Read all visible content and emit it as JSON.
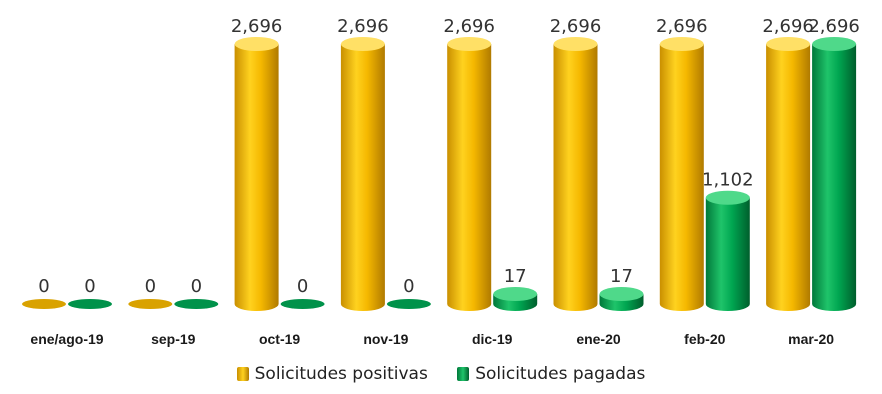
{
  "chart_data": {
    "type": "bar",
    "categories": [
      "ene/ago-19",
      "sep-19",
      "oct-19",
      "nov-19",
      "dic-19",
      "ene-20",
      "feb-20",
      "mar-20"
    ],
    "series": [
      {
        "name": "Solicitudes positivas",
        "values": [
          0,
          0,
          2696,
          2696,
          2696,
          2696,
          2696,
          2696
        ],
        "labels": [
          "0",
          "0",
          "2,696",
          "2,696",
          "2,696",
          "2,696",
          "2,696",
          "2,696"
        ],
        "color": "#F5B800"
      },
      {
        "name": "Solicitudes pagadas",
        "values": [
          0,
          0,
          0,
          0,
          17,
          17,
          1102,
          2696
        ],
        "labels": [
          "0",
          "0",
          "0",
          "0",
          "17",
          "17",
          "1,102",
          "2,696"
        ],
        "color": "#00A651"
      }
    ],
    "ylim": [
      0,
      2696
    ],
    "grid": false,
    "legend_position": "bottom",
    "style": "3d-cylinder"
  }
}
